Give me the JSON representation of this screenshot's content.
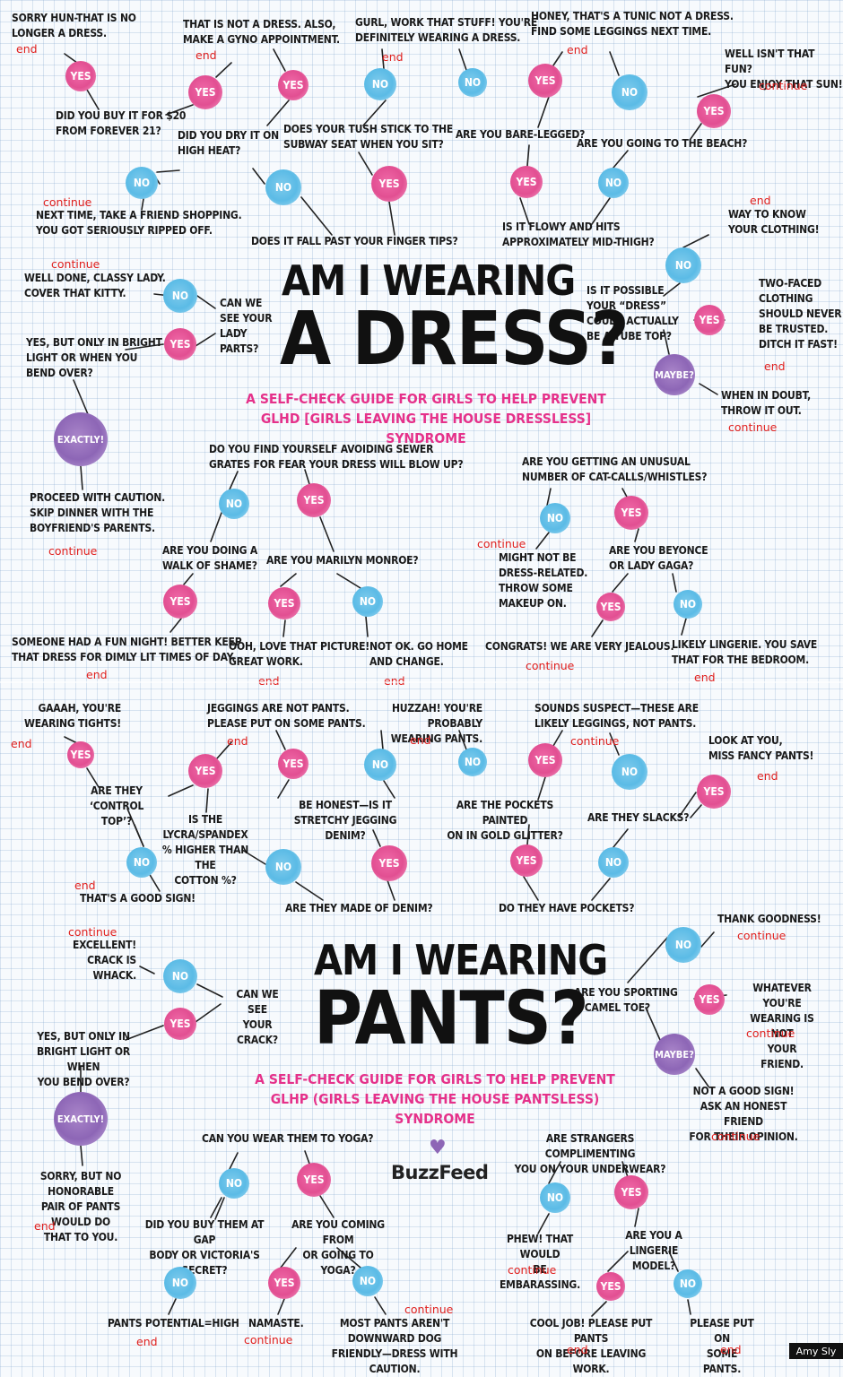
{
  "dress": {
    "title_line1": "Am I Wearing",
    "title_line2": "A Dress?",
    "subtitle": "A self-check guide for girls to help prevent\nGLHD [Girls Leaving the House Dressless] Syndrome",
    "texts": [
      "Sorry hun-that is no\nlonger a dress.",
      "That is NOT a dress. Also,\nmake a gyno appointment.",
      "Gurl, work that stuff! You're\ndefinitely wearing a dress.",
      "Honey, that's a tunic not a dress.\nFind some leggings next time.",
      "Well isn't that fun?\nYou enjoy that sun!",
      "Did you buy it for $20\nfrom Forever 21?",
      "Did you dry it on\nhigh heat?",
      "Does your tush stick to the\nsubway seat when you sit?",
      "Are you bare-legged?",
      "Are you going to the beach?",
      "Next time, take a friend shopping.\nYou got seriously ripped off.",
      "Does it fall past your finger tips?",
      "Is it flowy and hits\napproximately mid-thigh?",
      "Way to know\nyour clothing!",
      "Well done, classy lady.\nCover that kitty.",
      "Can we\nsee your\nlady\nparts?",
      "Yes, but only in bright\nlight or when you\nbend over?",
      "Is it possible\nyour “dress”\ncould actually\nbe a tube top?",
      "Two-faced\nclothing\nshould never\nbe trusted.\nDitch it fast!",
      "When in doubt,\nthrow it out.",
      "Proceed with caution.\nSkip dinner with the\nboyfriend's parents.",
      "Do you find yourself avoiding sewer\ngrates for fear your dress will blow up?",
      "Are you getting an unusual\nnumber of cat-calls/whistles?",
      "Are you doing a\nwalk of shame?",
      "Are you Marilyn Monroe?",
      "Might not be\ndress-related.\nThrow some\nmakeup on.",
      "Are you Beyonce\nor Lady Gaga?",
      "Someone had a fun night! Better keep\nthat dress for dimly lit times of day.",
      "Ooh, love that picture!\nGreat work.",
      "Not OK. Go home\nand change.",
      "Congrats! We are very jealous.",
      "Likely lingerie. You save\nthat for the bedroom."
    ]
  },
  "pants": {
    "title_line1": "Am I Wearing",
    "title_line2": "Pants?",
    "subtitle": "A self-check guide for girls to help prevent\nGLHP (Girls Leaving the House Pantsless) Syndrome",
    "logo": "BuzzFeed",
    "texts": [
      "Gaaah, you're\nwearing tights!",
      "Jeggings are not pants.\nPlease put on some pants.",
      "Huzzah! You're probably\nwearing pants.",
      "Sounds suspect—these are\nlikely leggings, not pants.",
      "Look at you,\nMiss Fancy Pants!",
      "Are they\n‘control top’?",
      "Is the Lycra/Spandex\n% higher than the\ncotton %?",
      "Be honest—is it\nstretchy jegging denim?",
      "Are the pockets painted\non in gold glitter?",
      "Are they slacks?",
      "That's a good sign!",
      "Are they made of denim?",
      "Do they have pockets?",
      "Thank goodness!",
      "Excellent!\nCrack is whack.",
      "Can we see\nyour crack?",
      "Are you sporting\na camel toe?",
      "Whatever you're\nwearing is not\nyour friend.",
      "Yes, but only in\nbright light or when\nyou bend over?",
      "Not a good sign!\nAsk an honest friend\nfor their opinion.",
      "Sorry, but no honorable\npair of pants would do\nthat to you.",
      "Can you wear them to yoga?",
      "Are strangers complimenting\nyou on your underwear?",
      "Did you buy them at Gap\nBody or Victoria's Secret?",
      "Are you coming from\nor going to yoga?",
      "Phew! That would\nbe embarassing.",
      "Are you a\nlingerie model?",
      "Pants potential=High",
      "Namaste.",
      "Most pants aren't downward dog\nfriendly—dress with caution.",
      "Cool job! Please put pants\non before leaving work.",
      "Please put on\nsome pants."
    ]
  },
  "bubble_labels": {
    "yes": "Yes",
    "no": "No",
    "maybe": "Maybe?",
    "exactly": "Exactly!"
  },
  "tags": {
    "end": "end",
    "continue": "continue"
  },
  "credit": "Amy Sly",
  "colors": {
    "yes": "#e24f92",
    "no": "#5bbbe6",
    "maybe": "#8d66b6",
    "annotation": "#e0201e",
    "subtitle": "#e5318a"
  }
}
